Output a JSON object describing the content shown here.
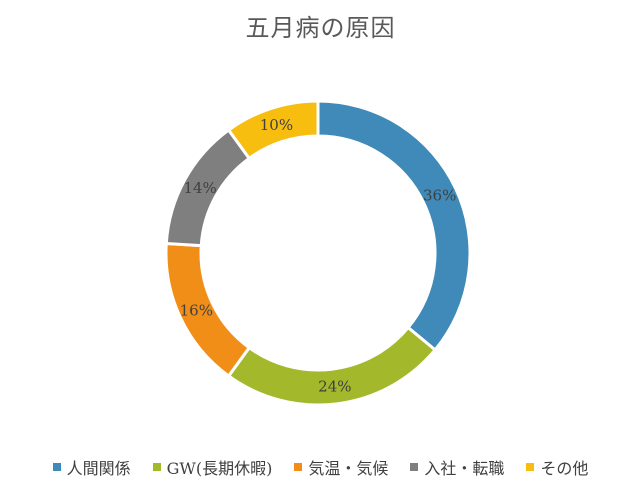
{
  "chart_data": {
    "type": "pie",
    "subtype": "doughnut",
    "title": "五月病の原因",
    "categories": [
      "人間関係",
      "GW(長期休暇)",
      "気温・気候",
      "入社・転職",
      "その他"
    ],
    "values": [
      36,
      24,
      16,
      14,
      10
    ],
    "value_labels": [
      "36%",
      "24%",
      "16%",
      "14%",
      "10%"
    ],
    "colors": [
      "#3f8ab8",
      "#a3b82a",
      "#f18e17",
      "#7f7f7f",
      "#f7be10"
    ],
    "legend_position": "bottom"
  }
}
